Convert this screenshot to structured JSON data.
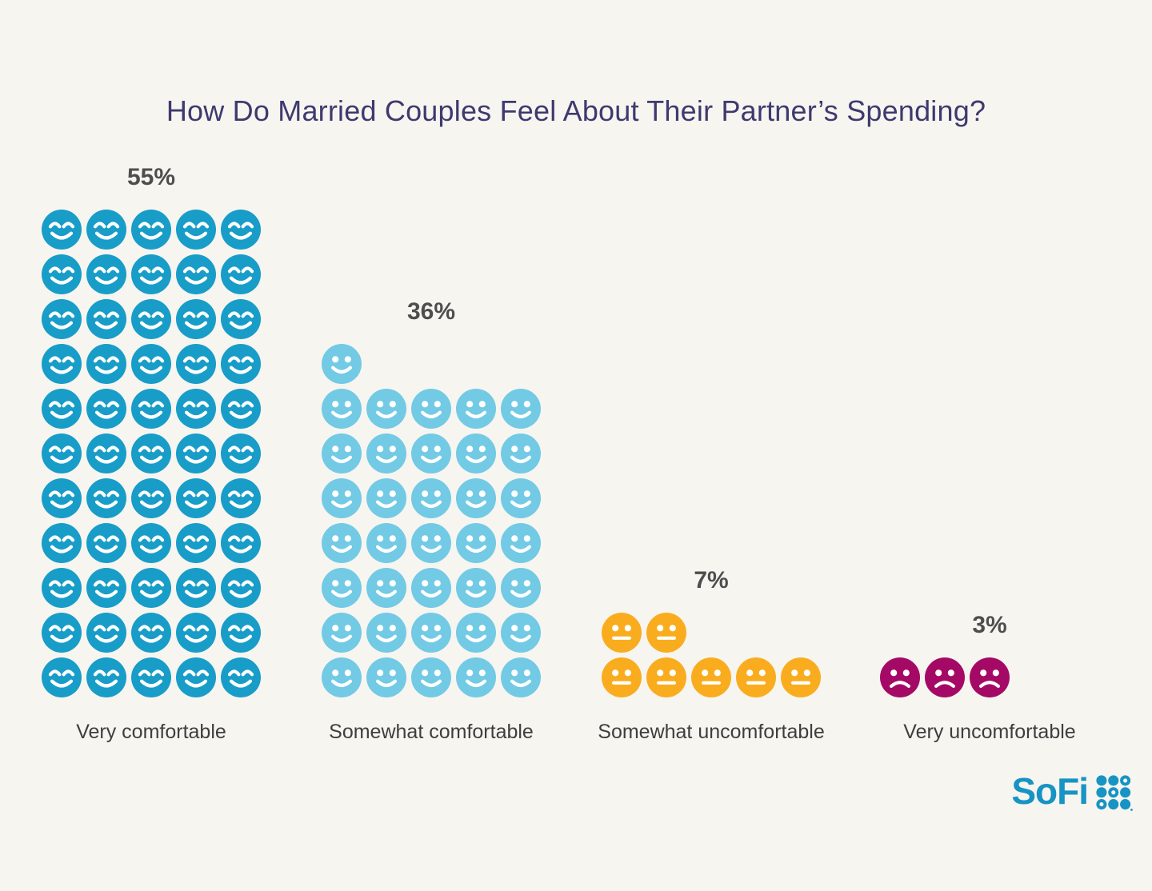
{
  "colors": {
    "background": "#F7F5F0",
    "title": "#3E3A6E",
    "value_label": "#4D4D4D",
    "category_label": "#3E3E3E",
    "brand": "#1793C4"
  },
  "chart_data": {
    "type": "pictogram",
    "title": "How Do Married Couples Feel About Their Partner’s Spending?",
    "icons_per_row": 5,
    "icon_value_percent": 1,
    "categories": [
      "Very comfortable",
      "Somewhat comfortable",
      "Somewhat uncomfortable",
      "Very uncomfortable"
    ],
    "values": [
      55,
      36,
      7,
      3
    ],
    "series": [
      {
        "category": "Very comfortable",
        "value": 55,
        "value_label": "55%",
        "color": "#189DC8",
        "face": "smile-closed-eyes"
      },
      {
        "category": "Somewhat comfortable",
        "value": 36,
        "value_label": "36%",
        "color": "#72CAE5",
        "face": "smile-dot-eyes"
      },
      {
        "category": "Somewhat uncomfortable",
        "value": 7,
        "value_label": "7%",
        "color": "#F9AD1E",
        "face": "neutral-dot-eyes"
      },
      {
        "category": "Very uncomfortable",
        "value": 3,
        "value_label": "3%",
        "color": "#A50966",
        "face": "frown-dot-eyes"
      }
    ],
    "legend": "none",
    "axes": "none"
  },
  "brand": {
    "name": "SoFi",
    "dot_pattern": [
      [
        "dot",
        "dot",
        "ring"
      ],
      [
        "dot",
        "ring",
        "dot"
      ],
      [
        "ring",
        "dot",
        "dot"
      ]
    ]
  }
}
